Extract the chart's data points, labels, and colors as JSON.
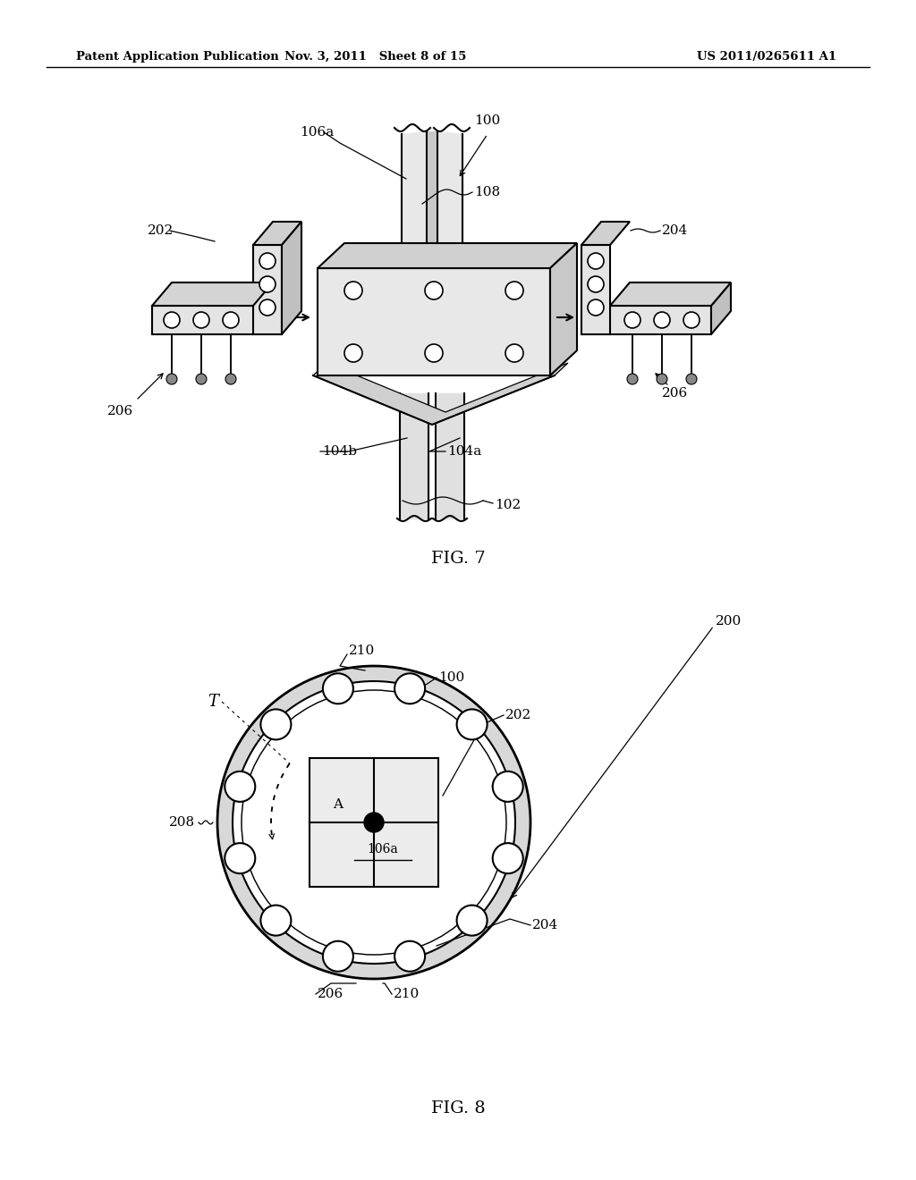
{
  "header_left": "Patent Application Publication",
  "header_mid": "Nov. 3, 2011   Sheet 8 of 15",
  "header_right": "US 2011/0265611 A1",
  "fig7_label": "FIG. 7",
  "fig8_label": "FIG. 8",
  "bg_color": "#ffffff",
  "line_color": "#000000"
}
